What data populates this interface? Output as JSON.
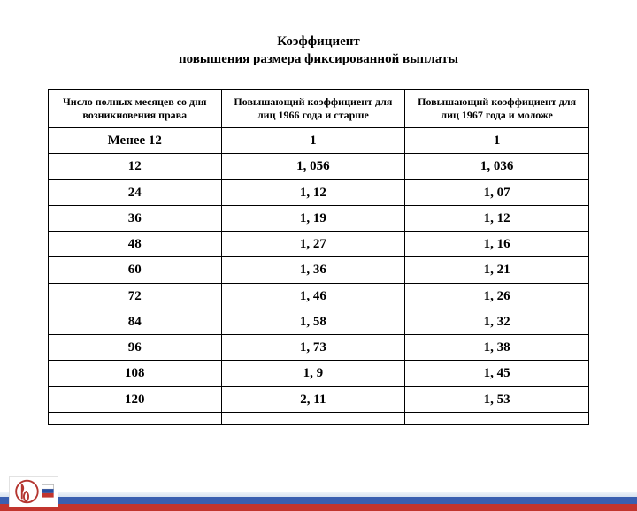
{
  "title": {
    "line1": "Коэффициент",
    "line2": "повышения размера фиксированной выплаты"
  },
  "table": {
    "type": "table",
    "border_color": "#000000",
    "background_color": "#ffffff",
    "header_fontsize": 12,
    "cell_fontsize": 15,
    "columns": [
      {
        "label": "Число полных месяцев со дня возникновения права",
        "width": "32%"
      },
      {
        "label": "Повышающий коэффициент для лиц 1966 года и старше",
        "width": "34%"
      },
      {
        "label": "Повышающий коэффициент для лиц 1967 года и моложе",
        "width": "34%"
      }
    ],
    "rows": [
      [
        "Менее 12",
        "1",
        "1"
      ],
      [
        "12",
        "1, 056",
        "1, 036"
      ],
      [
        "24",
        "1, 12",
        "1, 07"
      ],
      [
        "36",
        "1, 19",
        "1, 12"
      ],
      [
        "48",
        "1, 27",
        "1, 16"
      ],
      [
        "60",
        "1, 36",
        "1, 21"
      ],
      [
        "72",
        "1, 46",
        "1, 26"
      ],
      [
        "84",
        "1, 58",
        "1, 32"
      ],
      [
        "96",
        "1, 73",
        "1, 38"
      ],
      [
        "108",
        "1, 9",
        "1, 45"
      ],
      [
        "120",
        "2, 11",
        "1, 53"
      ]
    ]
  },
  "footer": {
    "stripe_colors": {
      "white": "#e8eef7",
      "blue": "#3a5fb0",
      "red": "#c2352e"
    },
    "logo_colors": {
      "outline": "#b43530",
      "blue": "#2a4ea0",
      "red": "#c2352e",
      "white": "#ffffff"
    }
  }
}
